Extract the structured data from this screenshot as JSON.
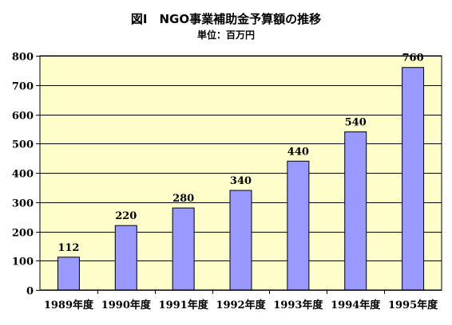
{
  "chart_data": {
    "type": "bar",
    "title": "図Ⅰ　NGO事業補助金予算額の推移",
    "subtitle": "単位：百万円",
    "categories": [
      "1989年度",
      "1990年度",
      "1991年度",
      "1992年度",
      "1993年度",
      "1994年度",
      "1995年度"
    ],
    "values": [
      112,
      220,
      280,
      340,
      440,
      540,
      760
    ],
    "data_labels": [
      "112",
      "220",
      "280",
      "340",
      "440",
      "540",
      "760"
    ],
    "ylim": [
      0,
      800
    ],
    "yticks": [
      0,
      100,
      200,
      300,
      400,
      500,
      600,
      700,
      800
    ],
    "xlabel": "",
    "ylabel": "",
    "grid": true,
    "legend": "none",
    "colors": {
      "plot_background": "#ffffcc",
      "bar_fill": "#9999ff",
      "bar_stroke": "#000000",
      "grid": "#000000"
    }
  }
}
